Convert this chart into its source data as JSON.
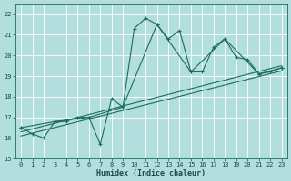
{
  "xlabel": "Humidex (Indice chaleur)",
  "bg_color": "#b2dede",
  "grid_color": "#c8eeee",
  "line_color": "#1a6e5a",
  "xlim": [
    -0.5,
    23.5
  ],
  "ylim": [
    15,
    22.5
  ],
  "yticks": [
    15,
    16,
    17,
    18,
    19,
    20,
    21,
    22
  ],
  "xticks": [
    0,
    1,
    2,
    3,
    4,
    5,
    6,
    7,
    8,
    9,
    10,
    11,
    12,
    13,
    14,
    15,
    16,
    17,
    18,
    19,
    20,
    21,
    22,
    23
  ],
  "series0_x": [
    0,
    1,
    2,
    3,
    4,
    5,
    6,
    7,
    8,
    9,
    10,
    11,
    12,
    13,
    14,
    15,
    16,
    17,
    18,
    19,
    20,
    21,
    22,
    23
  ],
  "series0_y": [
    16.5,
    16.2,
    16.0,
    16.8,
    16.8,
    17.0,
    17.0,
    15.7,
    17.9,
    17.5,
    21.3,
    21.8,
    21.5,
    20.8,
    21.2,
    19.2,
    19.2,
    20.4,
    20.8,
    19.9,
    19.8,
    19.1,
    19.2,
    19.4
  ],
  "series1_x": [
    0,
    3,
    6,
    9,
    12,
    15,
    18,
    21,
    23
  ],
  "series1_y": [
    16.5,
    16.8,
    17.0,
    17.5,
    21.5,
    19.2,
    20.8,
    19.1,
    19.4
  ],
  "trend1_x": [
    0,
    23
  ],
  "trend1_y": [
    16.3,
    19.5
  ],
  "trend2_x": [
    0,
    23
  ],
  "trend2_y": [
    16.1,
    19.25
  ]
}
